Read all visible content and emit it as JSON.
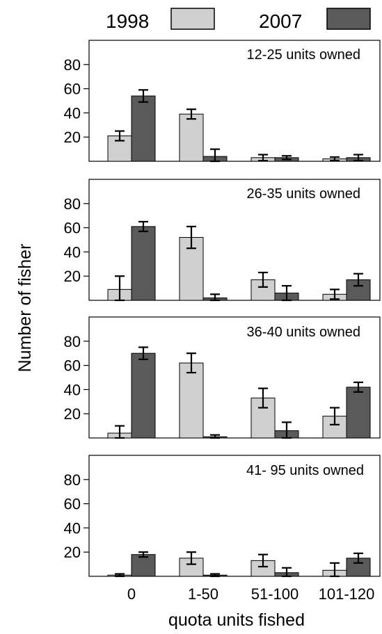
{
  "chart_data": {
    "type": "bar",
    "ylabel": "Number of fisher",
    "xlabel": "quota units fished",
    "categories": [
      "0",
      "1-50",
      "51-100",
      "101-120"
    ],
    "yticks": [
      20,
      40,
      60,
      80
    ],
    "ylim": [
      0,
      100
    ],
    "legend": {
      "placement": "top",
      "entries": [
        {
          "name": "1998",
          "color": "#d0d0d0"
        },
        {
          "name": "2007",
          "color": "#5a5a5a"
        }
      ]
    },
    "error_bars": true,
    "panels": [
      {
        "title": "12-25 units owned",
        "series": [
          {
            "name": "1998",
            "values": [
              21,
              39,
              3,
              2
            ],
            "errors": [
              4,
              4,
              2.5,
              1.5
            ]
          },
          {
            "name": "2007",
            "values": [
              54,
              4,
              3,
              3
            ],
            "errors": [
              5,
              6,
              1.5,
              2.5
            ]
          }
        ]
      },
      {
        "title": "26-35 units owned",
        "series": [
          {
            "name": "1998",
            "values": [
              9,
              52,
              17,
              5
            ],
            "errors": [
              11,
              9,
              6,
              4
            ]
          },
          {
            "name": "2007",
            "values": [
              61,
              2,
              6,
              17
            ],
            "errors": [
              4,
              3,
              6,
              5
            ]
          }
        ]
      },
      {
        "title": "36-40 units owned",
        "series": [
          {
            "name": "1998",
            "values": [
              4,
              62,
              33,
              18
            ],
            "errors": [
              6,
              8,
              8,
              7
            ]
          },
          {
            "name": "2007",
            "values": [
              70,
              1,
              6,
              42
            ],
            "errors": [
              5,
              1.5,
              7,
              4
            ]
          }
        ]
      },
      {
        "title": "41- 95 units owned",
        "series": [
          {
            "name": "1998",
            "values": [
              1,
              15,
              13,
              5
            ],
            "errors": [
              1,
              5,
              5,
              6
            ]
          },
          {
            "name": "2007",
            "values": [
              18,
              1,
              3,
              15
            ],
            "errors": [
              2,
              1,
              4,
              4
            ]
          }
        ]
      }
    ]
  }
}
